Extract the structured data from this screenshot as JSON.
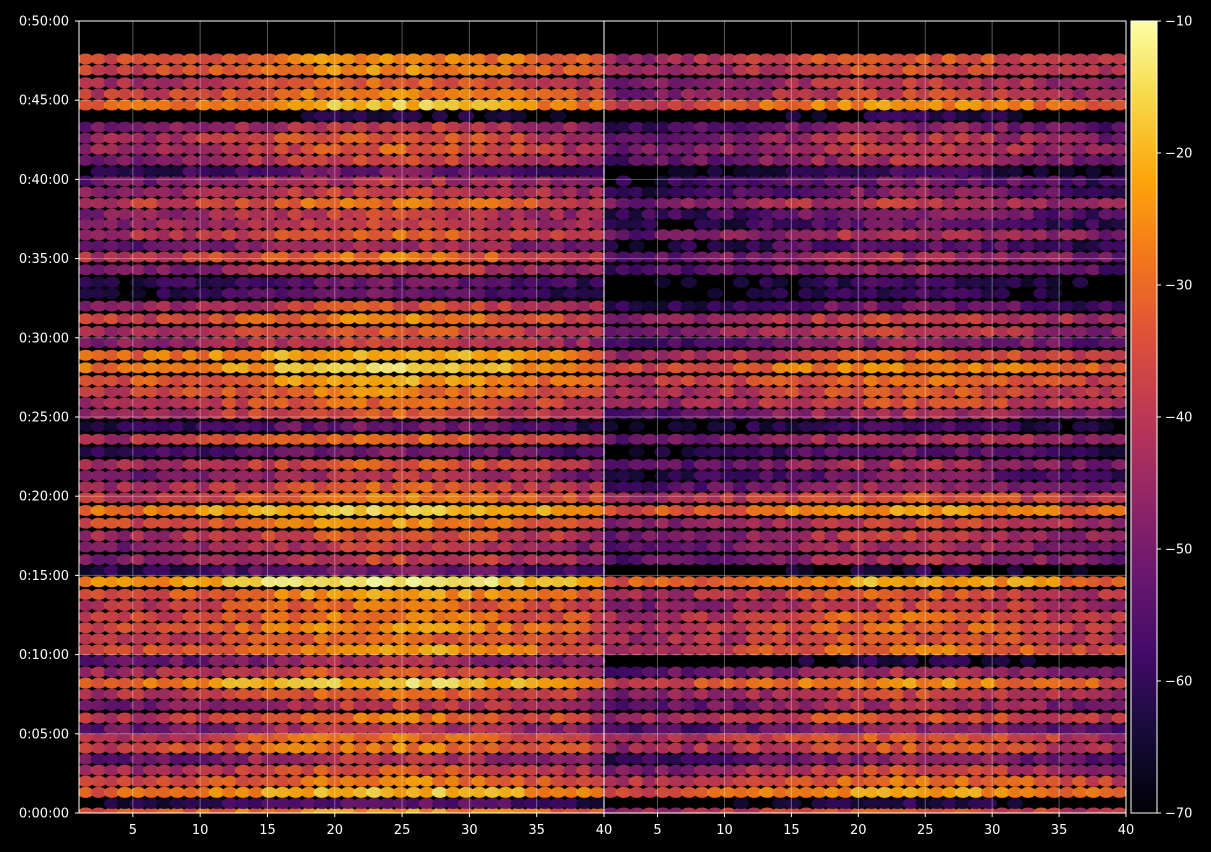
{
  "chart_data": {
    "type": "heatmap",
    "title": "",
    "xlabel": "",
    "ylabel": "",
    "background": "#000000",
    "colormap": "inferno",
    "panels": [
      {
        "name": "",
        "xlim": [
          1,
          40
        ],
        "xticks": [
          5,
          10,
          15,
          20,
          25,
          30,
          35,
          40
        ]
      },
      {
        "name": "",
        "xlim": [
          1,
          40
        ],
        "xticks": [
          5,
          10,
          15,
          20,
          25,
          30,
          35,
          40
        ]
      }
    ],
    "ylim_minutes": [
      0,
      50
    ],
    "yticks": [
      {
        "value": 0,
        "label": "0:00:00"
      },
      {
        "value": 5,
        "label": "0:05:00"
      },
      {
        "value": 10,
        "label": "0:10:00"
      },
      {
        "value": 15,
        "label": "0:15:00"
      },
      {
        "value": 20,
        "label": "0:20:00"
      },
      {
        "value": 25,
        "label": "0:25:00"
      },
      {
        "value": 30,
        "label": "0:30:00"
      },
      {
        "value": 35,
        "label": "0:35:00"
      },
      {
        "value": 40,
        "label": "0:40:00"
      },
      {
        "value": 45,
        "label": "0:45:00"
      },
      {
        "value": 50,
        "label": "0:50:00"
      }
    ],
    "colorbar": {
      "min": -70,
      "max": -10,
      "ticks": [
        {
          "value": -10,
          "label": "−10"
        },
        {
          "value": -20,
          "label": "−20"
        },
        {
          "value": -30,
          "label": "−30"
        },
        {
          "value": -40,
          "label": "−40"
        },
        {
          "value": -50,
          "label": "−50"
        },
        {
          "value": -60,
          "label": "−60"
        },
        {
          "value": -70,
          "label": "−70"
        }
      ]
    },
    "grid": true,
    "value_profile": {
      "minutes": [
        0.0,
        0.6,
        1.3,
        2.0,
        2.7,
        3.4,
        4.1,
        4.8,
        5.3,
        6.0,
        6.8,
        7.5,
        8.2,
        8.9,
        9.6,
        10.3,
        11.0,
        11.7,
        12.4,
        13.1,
        13.8,
        14.6,
        15.3,
        16.0,
        16.8,
        17.5,
        18.3,
        19.1,
        19.9,
        20.6,
        21.3,
        22.0,
        22.8,
        23.6,
        24.4,
        25.2,
        25.9,
        26.6,
        27.3,
        28.1,
        28.9,
        29.7,
        30.4,
        31.2,
        32.0,
        32.8,
        33.5,
        34.3,
        35.1,
        35.8,
        36.5,
        37.2,
        37.8,
        38.5,
        39.2,
        39.9,
        40.5,
        41.2,
        41.9,
        42.6,
        43.3,
        44.0,
        44.7,
        45.4,
        46.1,
        46.9,
        47.6
      ],
      "panel1": [
        -30,
        -60,
        -26,
        -34,
        -40,
        -48,
        -34,
        -36,
        -48,
        -36,
        -46,
        -38,
        -24,
        -40,
        -50,
        -30,
        -36,
        -32,
        -34,
        -36,
        -30,
        -20,
        -58,
        -44,
        -46,
        -40,
        -32,
        -24,
        -34,
        -40,
        -48,
        -40,
        -56,
        -38,
        -58,
        -40,
        -38,
        -34,
        -30,
        -24,
        -26,
        -44,
        -40,
        -34,
        -42,
        -60,
        -58,
        -46,
        -36,
        -50,
        -38,
        -44,
        -44,
        -36,
        -44,
        -48,
        -58,
        -44,
        -40,
        -40,
        -46,
        -70,
        -26,
        -34,
        -38,
        -32,
        -32
      ],
      "panel2": [
        -40,
        -70,
        -30,
        -36,
        -44,
        -54,
        -40,
        -40,
        -54,
        -40,
        -50,
        -44,
        -32,
        -50,
        -70,
        -36,
        -40,
        -38,
        -38,
        -44,
        -40,
        -28,
        -70,
        -50,
        -50,
        -46,
        -44,
        -30,
        -40,
        -52,
        -58,
        -50,
        -60,
        -48,
        -64,
        -50,
        -42,
        -40,
        -36,
        -32,
        -40,
        -54,
        -46,
        -44,
        -58,
        -66,
        -66,
        -54,
        -50,
        -60,
        -48,
        -60,
        -56,
        -46,
        -56,
        -58,
        -66,
        -50,
        -46,
        -48,
        -54,
        -70,
        -32,
        -44,
        -46,
        -42,
        -40
      ]
    }
  }
}
